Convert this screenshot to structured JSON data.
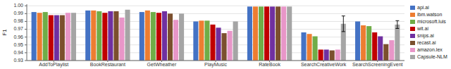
{
  "chart_data": {
    "type": "bar",
    "categories": [
      "AddToPlaylist",
      "BookRestaurant",
      "GetWheather",
      "PlayMusic",
      "RateBook",
      "SearchCreativeWork",
      "SearchScreeningEvent"
    ],
    "series": [
      {
        "name": "api.ai",
        "color": "#4472c4",
        "values": [
          0.992,
          0.994,
          0.992,
          0.98,
          0.999,
          0.966,
          0.98
        ]
      },
      {
        "name": "ibm.watson",
        "color": "#ed7d31",
        "values": [
          0.991,
          0.994,
          0.994,
          0.981,
          0.999,
          0.964,
          0.975
        ]
      },
      {
        "name": "microsoft.luis",
        "color": "#70ad47",
        "values": [
          0.992,
          0.993,
          0.992,
          0.981,
          0.999,
          0.961,
          0.974
        ]
      },
      {
        "name": "wit.ai",
        "color": "#c00000",
        "values": [
          0.988,
          0.991,
          0.991,
          0.976,
          0.999,
          0.944,
          0.966
        ]
      },
      {
        "name": "snips.ai",
        "color": "#7030a0",
        "values": [
          0.988,
          0.993,
          0.993,
          0.972,
          0.999,
          0.944,
          0.961
        ]
      },
      {
        "name": "recast.ai",
        "color": "#7b4f2e",
        "values": [
          0.988,
          0.993,
          0.99,
          0.965,
          0.999,
          0.943,
          0.951
        ]
      },
      {
        "name": "amazon.lex",
        "color": "#e896c8",
        "values": [
          0.991,
          0.985,
          0.982,
          0.968,
          0.999,
          0.944,
          0.956
        ]
      },
      {
        "name": "Capsule-NLM",
        "color": "#a5a5a5",
        "values": [
          0.991,
          0.995,
          0.99,
          0.98,
          0.999,
          0.977,
          0.976
        ],
        "errors": [
          null,
          null,
          null,
          null,
          null,
          0.01,
          0.005
        ]
      }
    ],
    "ylabel": "F1",
    "ylim": [
      0.93,
      1.002
    ],
    "yticks": [
      0.93,
      0.94,
      0.95,
      0.96,
      0.97,
      0.98,
      0.99,
      {
        "value": 1.0,
        "label": "1.00"
      }
    ],
    "grid": true,
    "legend": "right"
  }
}
